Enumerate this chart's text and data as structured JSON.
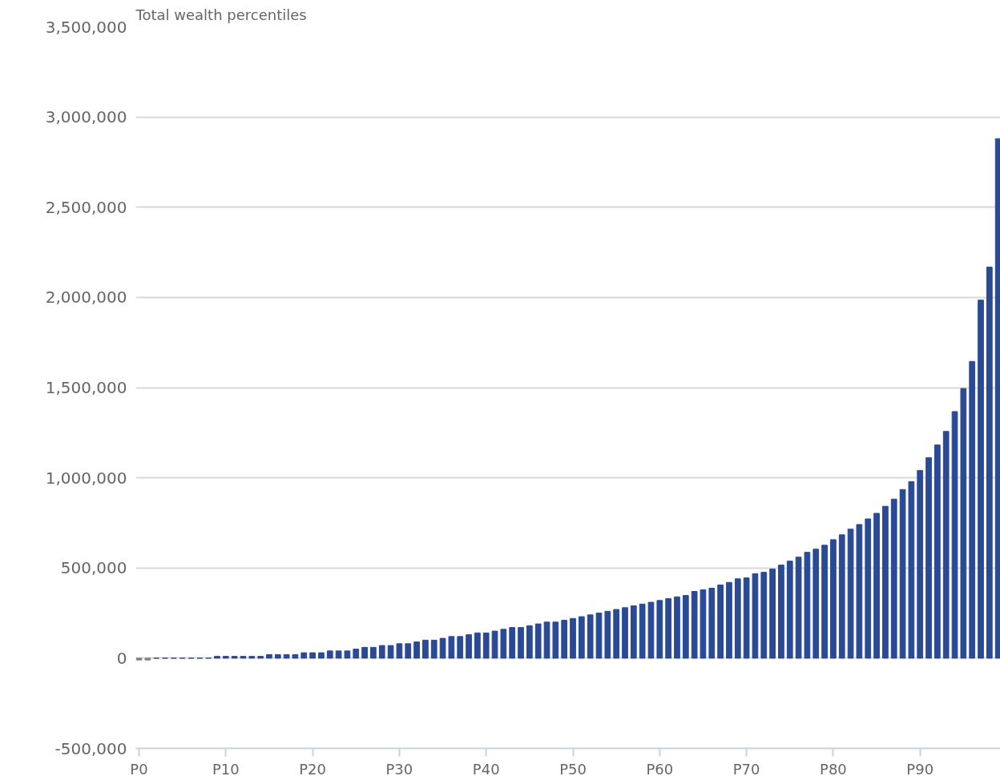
{
  "chart_data": {
    "type": "bar",
    "title": "Total wealth percentiles",
    "categories": [
      "P0",
      null,
      null,
      null,
      null,
      null,
      null,
      null,
      null,
      null,
      "P10",
      null,
      null,
      null,
      null,
      null,
      null,
      null,
      null,
      null,
      "P20",
      null,
      null,
      null,
      null,
      null,
      null,
      null,
      null,
      null,
      "P30",
      null,
      null,
      null,
      null,
      null,
      null,
      null,
      null,
      null,
      "P40",
      null,
      null,
      null,
      null,
      null,
      null,
      null,
      null,
      null,
      "P50",
      null,
      null,
      null,
      null,
      null,
      null,
      null,
      null,
      null,
      "P60",
      null,
      null,
      null,
      null,
      null,
      null,
      null,
      null,
      null,
      "P70",
      null,
      null,
      null,
      null,
      null,
      null,
      null,
      null,
      null,
      "P80",
      null,
      null,
      null,
      null,
      null,
      null,
      null,
      null,
      null,
      "P90",
      null,
      null,
      null,
      null,
      null,
      null,
      null,
      null,
      null
    ],
    "values": [
      -10000,
      -10000,
      0,
      0,
      0,
      0,
      0,
      0,
      0,
      10000,
      10000,
      10000,
      10000,
      10000,
      10000,
      20000,
      20000,
      20000,
      20000,
      30000,
      30000,
      30000,
      40000,
      40000,
      40000,
      50000,
      60000,
      60000,
      70000,
      70000,
      80000,
      80000,
      90000,
      100000,
      100000,
      110000,
      120000,
      120000,
      130000,
      140000,
      140000,
      150000,
      160000,
      170000,
      170000,
      180000,
      190000,
      200000,
      200000,
      210000,
      220000,
      230000,
      240000,
      250000,
      260000,
      270000,
      280000,
      290000,
      300000,
      310000,
      320000,
      330000,
      340000,
      348000,
      370000,
      379000,
      388000,
      406000,
      420000,
      440000,
      445000,
      468000,
      476000,
      494000,
      516000,
      538000,
      560000,
      587000,
      604000,
      626000,
      657000,
      684000,
      715000,
      741000,
      772000,
      803000,
      842000,
      882000,
      935000,
      979000,
      1041000,
      1112000,
      1182000,
      1257000,
      1367000,
      1495000,
      1645000,
      1985000,
      2168000,
      2880000
    ],
    "colors": [
      "#808080",
      "#808080",
      "#2a4a96",
      "#2a4a96",
      "#2a4a96",
      "#2a4a96",
      "#2a4a96",
      "#2a4a96",
      "#2a4a96",
      "#2a4a96",
      "#2a4a96",
      "#2a4a96",
      "#2a4a96",
      "#2a4a96",
      "#2a4a96",
      "#2a4a96",
      "#2a4a96",
      "#2a4a96",
      "#2a4a96",
      "#2a4a96",
      "#2a4a96",
      "#2a4a96",
      "#2a4a96",
      "#2a4a96",
      "#2a4a96",
      "#2a4a96",
      "#2a4a96",
      "#2a4a96",
      "#2a4a96",
      "#2a4a96",
      "#2a4a96",
      "#2a4a96",
      "#2a4a96",
      "#2a4a96",
      "#2a4a96",
      "#2a4a96",
      "#2a4a96",
      "#2a4a96",
      "#2a4a96",
      "#2a4a96",
      "#2a4a96",
      "#2a4a96",
      "#2a4a96",
      "#2a4a96",
      "#2a4a96",
      "#2a4a96",
      "#2a4a96",
      "#2a4a96",
      "#2a4a96",
      "#2a4a96",
      "#2a4a96",
      "#2a4a96",
      "#2a4a96",
      "#2a4a96",
      "#2a4a96",
      "#2a4a96",
      "#2a4a96",
      "#2a4a96",
      "#2a4a96",
      "#2a4a96",
      "#2a4a96",
      "#2a4a96",
      "#2a4a96",
      "#2a4a96",
      "#2a4a96",
      "#2a4a96",
      "#2a4a96",
      "#2a4a96",
      "#2a4a96",
      "#2a4a96",
      "#2a4a96",
      "#2a4a96",
      "#2a4a96",
      "#2a4a96",
      "#2a4a96",
      "#2a4a96",
      "#2a4a96",
      "#2a4a96",
      "#2a4a96",
      "#2a4a96",
      "#2a4a96",
      "#2a4a96",
      "#2a4a96",
      "#2a4a96",
      "#2a4a96",
      "#2a4a96",
      "#2a4a96",
      "#2a4a96",
      "#2a4a96",
      "#2a4a96",
      "#2a4a96",
      "#2a4a96",
      "#2a4a96",
      "#2a4a96",
      "#2a4a96",
      "#2a4a96",
      "#2a4a96",
      "#2a4a96",
      "#2a4a96",
      "#2a4a96"
    ],
    "ylim": [
      -500000,
      3500000
    ],
    "yticks": [
      {
        "value": -500000,
        "label": "-500,000"
      },
      {
        "value": 0,
        "label": "0"
      },
      {
        "value": 500000,
        "label": "500,000"
      },
      {
        "value": 1000000,
        "label": "1,000,000"
      },
      {
        "value": 1500000,
        "label": "1,500,000"
      },
      {
        "value": 2000000,
        "label": "2,000,000"
      },
      {
        "value": 2500000,
        "label": "2,500,000"
      },
      {
        "value": 3000000,
        "label": "3,000,000"
      },
      {
        "value": 3500000,
        "label": "3,500,000"
      }
    ],
    "grid": "y"
  }
}
